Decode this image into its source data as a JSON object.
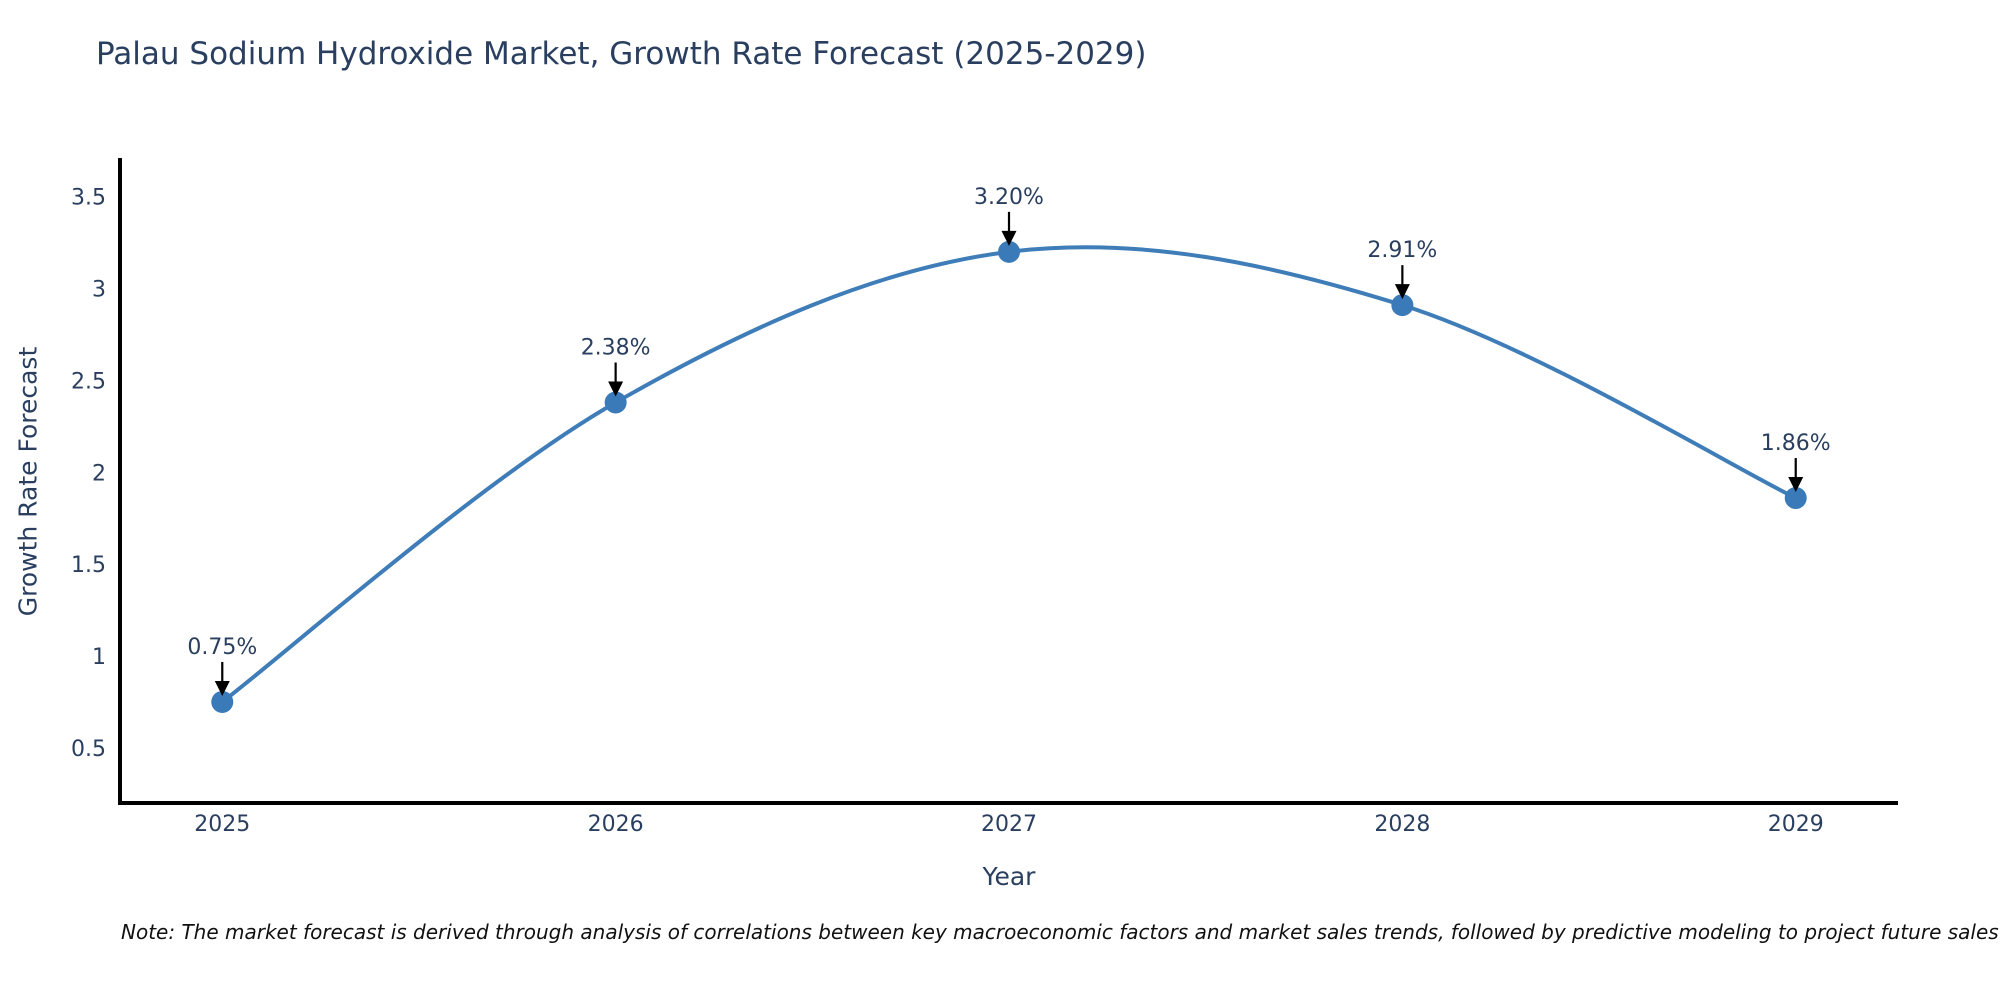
{
  "chart_data": {
    "type": "line",
    "title": "Palau Sodium Hydroxide Market, Growth Rate Forecast (2025-2029)",
    "xlabel": "Year",
    "ylabel": "Growth Rate Forecast",
    "x": [
      2025,
      2026,
      2027,
      2028,
      2029
    ],
    "series": [
      {
        "name": "Growth Rate Forecast",
        "values": [
          0.75,
          2.38,
          3.2,
          2.91,
          1.86
        ],
        "point_labels": [
          "0.75%",
          "2.38%",
          "3.20%",
          "2.91%",
          "1.86%"
        ]
      }
    ],
    "xtick_labels": [
      "2025",
      "2026",
      "2027",
      "2028",
      "2029"
    ],
    "ytick_values": [
      0.5,
      1,
      1.5,
      2,
      2.5,
      3,
      3.5
    ],
    "ytick_labels": [
      "0.5",
      "1",
      "1.5",
      "2",
      "2.5",
      "3",
      "3.5"
    ],
    "xlim": [
      2024.74,
      2029.26
    ],
    "ylim": [
      0.2,
      3.7
    ],
    "grid": false,
    "legend_position": "none",
    "line_style": "spline",
    "marker": "circle",
    "annotations": "value labels with down arrows above each point",
    "colors": {
      "line": "#3f7db8",
      "marker": "#3a7ab8",
      "text": "#2a3f5f",
      "axis_line": "#000000",
      "annotation_arrow": "#000000",
      "background": "#ffffff"
    }
  },
  "footnote": {
    "text": "Note: The market forecast is derived through analysis of correlations between key macroeconomic factors and market sales trends, followed by predictive modeling to project future sales"
  }
}
